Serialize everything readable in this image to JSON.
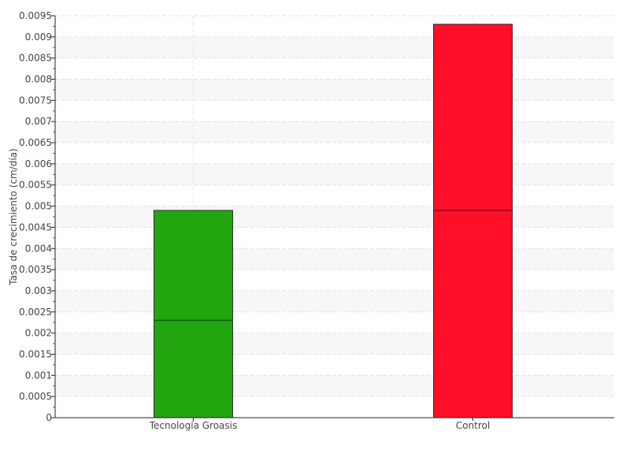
{
  "chart_data": {
    "type": "bar",
    "title": "",
    "xlabel": "",
    "ylabel": "Tasa de crecimiento (cm/día)",
    "categories": [
      "Tecnología Groasis",
      "Control"
    ],
    "values": [
      0.0049,
      0.0093
    ],
    "inner_line_values": [
      0.0023,
      0.0049
    ],
    "colors": [
      "#22a50f",
      "#ff0e28"
    ],
    "ylim": [
      0,
      0.0095
    ],
    "yticks": [
      "0",
      "0.0005",
      "0.001",
      "0.0015",
      "0.002",
      "0.0025",
      "0.003",
      "0.0035",
      "0.004",
      "0.0045",
      "0.005",
      "0.0055",
      "0.006",
      "0.0065",
      "0.007",
      "0.0075",
      "0.008",
      "0.0085",
      "0.009",
      "0.0095"
    ],
    "grid": true,
    "legend": "none"
  }
}
